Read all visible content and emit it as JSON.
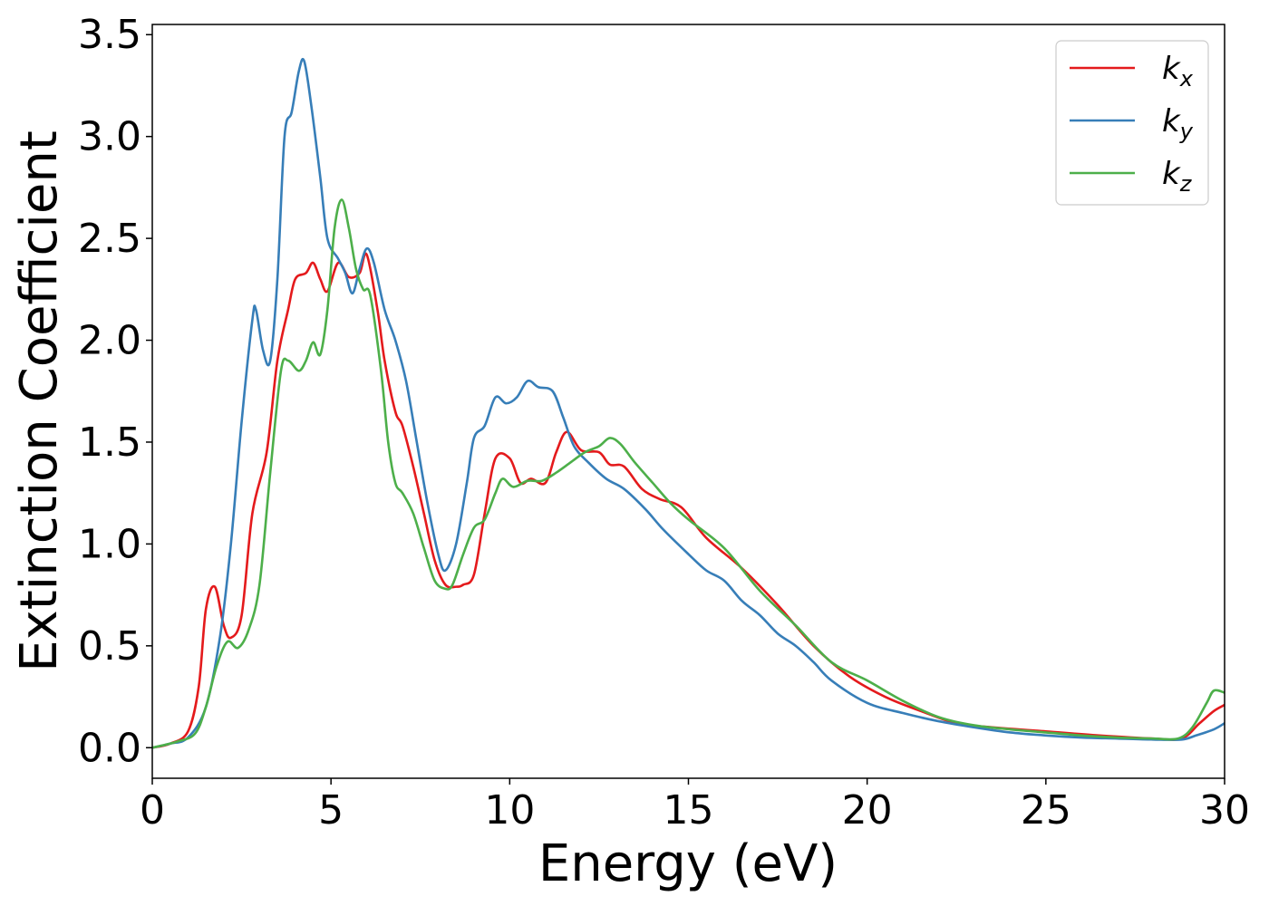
{
  "chart_data": {
    "type": "line",
    "title": "",
    "xlabel": "Energy (eV)",
    "ylabel": "Extinction Coefficient",
    "xlim": [
      0,
      30
    ],
    "ylim": [
      -0.15,
      3.55
    ],
    "xticks": [
      0,
      5,
      10,
      15,
      20,
      25,
      30
    ],
    "xtick_labels": [
      "0",
      "5",
      "10",
      "15",
      "20",
      "25",
      "30"
    ],
    "yticks": [
      0.0,
      0.5,
      1.0,
      1.5,
      2.0,
      2.5,
      3.0,
      3.5
    ],
    "ytick_labels": [
      "0.0",
      "0.5",
      "1.0",
      "1.5",
      "2.0",
      "2.5",
      "3.0",
      "3.5"
    ],
    "grid": false,
    "legend_position": "top-right",
    "series": [
      {
        "name": "k_x",
        "label_main": "k",
        "label_sub": "x",
        "color": "#e41a1c",
        "points": [
          [
            0,
            0
          ],
          [
            0.5,
            0.02
          ],
          [
            1.0,
            0.08
          ],
          [
            1.3,
            0.3
          ],
          [
            1.5,
            0.68
          ],
          [
            1.75,
            0.79
          ],
          [
            2.0,
            0.6
          ],
          [
            2.2,
            0.54
          ],
          [
            2.5,
            0.65
          ],
          [
            2.8,
            1.15
          ],
          [
            3.2,
            1.45
          ],
          [
            3.5,
            1.9
          ],
          [
            3.8,
            2.15
          ],
          [
            4.0,
            2.3
          ],
          [
            4.3,
            2.33
          ],
          [
            4.5,
            2.38
          ],
          [
            4.7,
            2.3
          ],
          [
            4.9,
            2.24
          ],
          [
            5.2,
            2.38
          ],
          [
            5.5,
            2.31
          ],
          [
            5.8,
            2.33
          ],
          [
            6.0,
            2.42
          ],
          [
            6.3,
            2.15
          ],
          [
            6.5,
            1.9
          ],
          [
            6.8,
            1.65
          ],
          [
            7.0,
            1.58
          ],
          [
            7.3,
            1.38
          ],
          [
            7.6,
            1.15
          ],
          [
            7.9,
            0.92
          ],
          [
            8.2,
            0.8
          ],
          [
            8.5,
            0.79
          ],
          [
            8.7,
            0.8
          ],
          [
            9.0,
            0.85
          ],
          [
            9.3,
            1.15
          ],
          [
            9.6,
            1.42
          ],
          [
            10.0,
            1.42
          ],
          [
            10.3,
            1.3
          ],
          [
            10.6,
            1.32
          ],
          [
            11.0,
            1.3
          ],
          [
            11.3,
            1.45
          ],
          [
            11.6,
            1.55
          ],
          [
            12.0,
            1.46
          ],
          [
            12.5,
            1.45
          ],
          [
            12.8,
            1.39
          ],
          [
            13.2,
            1.38
          ],
          [
            13.7,
            1.27
          ],
          [
            14.2,
            1.22
          ],
          [
            14.8,
            1.18
          ],
          [
            15.5,
            1.03
          ],
          [
            16.5,
            0.88
          ],
          [
            17.5,
            0.7
          ],
          [
            18.5,
            0.5
          ],
          [
            19.5,
            0.35
          ],
          [
            20.5,
            0.25
          ],
          [
            21.5,
            0.18
          ],
          [
            22.5,
            0.12
          ],
          [
            23.5,
            0.1
          ],
          [
            25.0,
            0.08
          ],
          [
            26.5,
            0.06
          ],
          [
            28.0,
            0.045
          ],
          [
            28.8,
            0.045
          ],
          [
            29.3,
            0.12
          ],
          [
            29.7,
            0.18
          ],
          [
            30.0,
            0.21
          ]
        ]
      },
      {
        "name": "k_y",
        "label_main": "k",
        "label_sub": "y",
        "color": "#377eb8",
        "points": [
          [
            0,
            0
          ],
          [
            0.5,
            0.02
          ],
          [
            1.0,
            0.05
          ],
          [
            1.5,
            0.2
          ],
          [
            1.9,
            0.55
          ],
          [
            2.2,
            1.0
          ],
          [
            2.5,
            1.6
          ],
          [
            2.8,
            2.1
          ],
          [
            2.9,
            2.15
          ],
          [
            3.1,
            1.95
          ],
          [
            3.3,
            1.9
          ],
          [
            3.5,
            2.3
          ],
          [
            3.7,
            3.0
          ],
          [
            3.9,
            3.12
          ],
          [
            4.1,
            3.32
          ],
          [
            4.25,
            3.37
          ],
          [
            4.45,
            3.15
          ],
          [
            4.7,
            2.8
          ],
          [
            4.9,
            2.5
          ],
          [
            5.2,
            2.4
          ],
          [
            5.4,
            2.33
          ],
          [
            5.6,
            2.23
          ],
          [
            5.8,
            2.35
          ],
          [
            6.0,
            2.45
          ],
          [
            6.2,
            2.38
          ],
          [
            6.5,
            2.15
          ],
          [
            6.8,
            2.0
          ],
          [
            7.1,
            1.8
          ],
          [
            7.4,
            1.5
          ],
          [
            7.7,
            1.2
          ],
          [
            8.0,
            0.95
          ],
          [
            8.2,
            0.87
          ],
          [
            8.5,
            1.0
          ],
          [
            8.8,
            1.3
          ],
          [
            9.0,
            1.52
          ],
          [
            9.3,
            1.58
          ],
          [
            9.6,
            1.72
          ],
          [
            9.9,
            1.69
          ],
          [
            10.2,
            1.72
          ],
          [
            10.5,
            1.8
          ],
          [
            10.8,
            1.77
          ],
          [
            11.2,
            1.75
          ],
          [
            11.5,
            1.62
          ],
          [
            11.8,
            1.48
          ],
          [
            12.2,
            1.4
          ],
          [
            12.7,
            1.32
          ],
          [
            13.2,
            1.27
          ],
          [
            13.8,
            1.17
          ],
          [
            14.3,
            1.07
          ],
          [
            15.0,
            0.95
          ],
          [
            15.5,
            0.87
          ],
          [
            16.0,
            0.82
          ],
          [
            16.5,
            0.72
          ],
          [
            17.0,
            0.65
          ],
          [
            17.5,
            0.56
          ],
          [
            18.0,
            0.5
          ],
          [
            18.5,
            0.42
          ],
          [
            19.0,
            0.33
          ],
          [
            20.0,
            0.22
          ],
          [
            21.0,
            0.17
          ],
          [
            22.0,
            0.13
          ],
          [
            23.0,
            0.1
          ],
          [
            24.0,
            0.075
          ],
          [
            25.0,
            0.06
          ],
          [
            26.0,
            0.05
          ],
          [
            27.0,
            0.045
          ],
          [
            28.0,
            0.04
          ],
          [
            28.8,
            0.04
          ],
          [
            29.2,
            0.06
          ],
          [
            29.7,
            0.09
          ],
          [
            30.0,
            0.12
          ]
        ]
      },
      {
        "name": "k_z",
        "label_main": "k",
        "label_sub": "z",
        "color": "#4daf4a",
        "points": [
          [
            0,
            0
          ],
          [
            0.7,
            0.03
          ],
          [
            1.2,
            0.07
          ],
          [
            1.5,
            0.2
          ],
          [
            1.8,
            0.4
          ],
          [
            2.1,
            0.52
          ],
          [
            2.4,
            0.49
          ],
          [
            2.7,
            0.58
          ],
          [
            3.0,
            0.8
          ],
          [
            3.3,
            1.35
          ],
          [
            3.6,
            1.85
          ],
          [
            3.8,
            1.9
          ],
          [
            4.1,
            1.85
          ],
          [
            4.3,
            1.9
          ],
          [
            4.5,
            1.99
          ],
          [
            4.7,
            1.93
          ],
          [
            4.9,
            2.15
          ],
          [
            5.1,
            2.55
          ],
          [
            5.3,
            2.69
          ],
          [
            5.5,
            2.55
          ],
          [
            5.7,
            2.35
          ],
          [
            5.9,
            2.25
          ],
          [
            6.1,
            2.22
          ],
          [
            6.4,
            1.85
          ],
          [
            6.6,
            1.5
          ],
          [
            6.8,
            1.3
          ],
          [
            7.0,
            1.25
          ],
          [
            7.3,
            1.15
          ],
          [
            7.6,
            0.98
          ],
          [
            7.9,
            0.82
          ],
          [
            8.2,
            0.78
          ],
          [
            8.4,
            0.8
          ],
          [
            8.7,
            0.95
          ],
          [
            9.0,
            1.08
          ],
          [
            9.3,
            1.12
          ],
          [
            9.6,
            1.25
          ],
          [
            9.8,
            1.32
          ],
          [
            10.1,
            1.28
          ],
          [
            10.5,
            1.31
          ],
          [
            10.9,
            1.31
          ],
          [
            11.3,
            1.35
          ],
          [
            11.7,
            1.4
          ],
          [
            12.1,
            1.45
          ],
          [
            12.5,
            1.48
          ],
          [
            12.8,
            1.52
          ],
          [
            13.1,
            1.49
          ],
          [
            13.5,
            1.4
          ],
          [
            14.0,
            1.3
          ],
          [
            14.5,
            1.2
          ],
          [
            15.0,
            1.12
          ],
          [
            16.0,
            0.98
          ],
          [
            17.0,
            0.77
          ],
          [
            18.0,
            0.6
          ],
          [
            19.0,
            0.42
          ],
          [
            20.0,
            0.33
          ],
          [
            21.0,
            0.23
          ],
          [
            22.0,
            0.15
          ],
          [
            23.0,
            0.11
          ],
          [
            24.0,
            0.09
          ],
          [
            25.0,
            0.075
          ],
          [
            26.0,
            0.06
          ],
          [
            27.0,
            0.05
          ],
          [
            28.0,
            0.045
          ],
          [
            28.7,
            0.045
          ],
          [
            29.1,
            0.1
          ],
          [
            29.5,
            0.22
          ],
          [
            29.7,
            0.28
          ],
          [
            30.0,
            0.27
          ]
        ]
      }
    ]
  }
}
